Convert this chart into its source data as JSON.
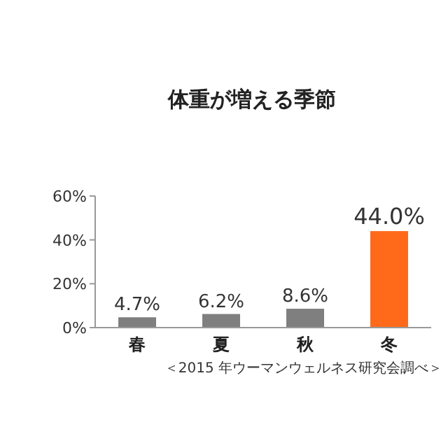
{
  "chart_data": {
    "type": "bar",
    "title": "体重が増える季節",
    "categories": [
      "春",
      "夏",
      "秋",
      "冬"
    ],
    "values": [
      4.7,
      6.2,
      8.6,
      44.0
    ],
    "value_labels": [
      "4.7%",
      "6.2%",
      "8.6%",
      "44.0%"
    ],
    "colors": [
      "#7f7f7f",
      "#7f7f7f",
      "#7f7f7f",
      "#ff6a1a"
    ],
    "ylim": [
      0,
      60
    ],
    "yticks": [
      {
        "value": 0,
        "label": "0%"
      },
      {
        "value": 20,
        "label": "20%"
      },
      {
        "value": 40,
        "label": "40%"
      },
      {
        "value": 60,
        "label": "60%"
      }
    ],
    "annotations": [
      "＜2015 年ウーマンウェルネス研究会調べ＞"
    ]
  }
}
